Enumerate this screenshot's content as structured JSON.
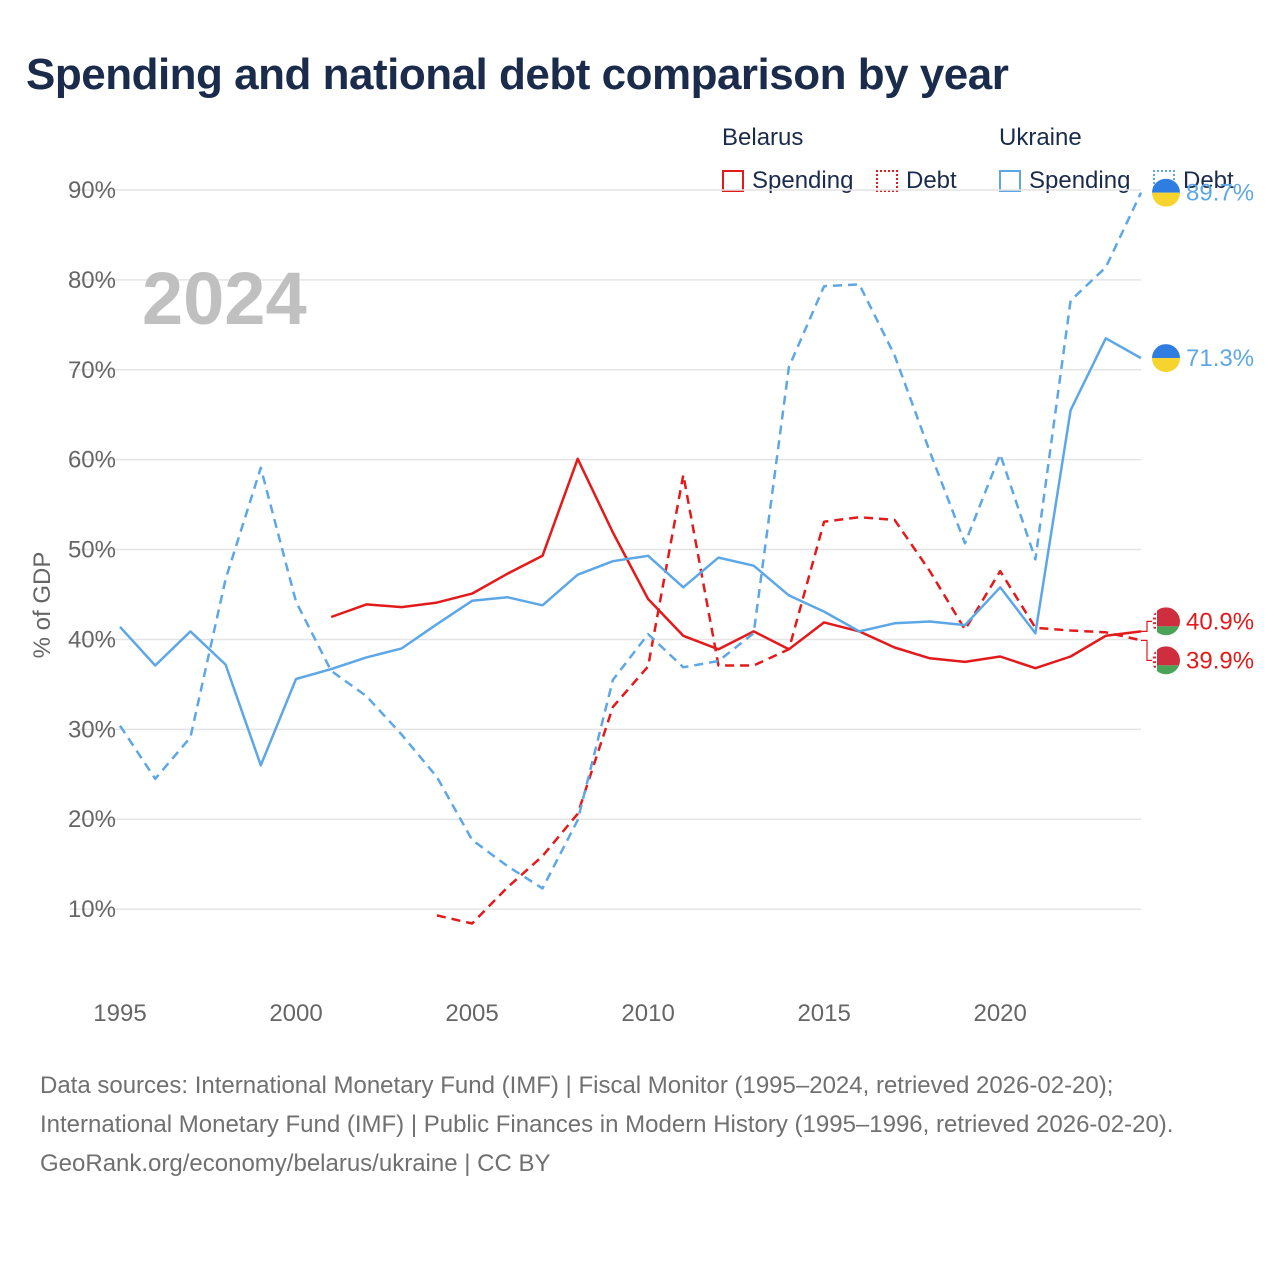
{
  "title": "Spending and national debt comparison by year",
  "legend": {
    "belarus_label": "Belarus",
    "ukraine_label": "Ukraine",
    "spending_label": "Spending",
    "debt_label": "Debt"
  },
  "colors": {
    "belarus": "#e31a1c",
    "ukraine": "#5ea7e6",
    "grid": "#e4e4e4",
    "axis_text": "#666666",
    "year_watermark": "#c0c0c0"
  },
  "year_watermark": "2024",
  "end_labels": {
    "ukraine_debt": "89.7%",
    "ukraine_spending": "71.3%",
    "belarus_spending": "40.9%",
    "belarus_debt": "39.9%"
  },
  "chart_data": {
    "type": "line",
    "ylabel": "% of GDP",
    "xlim": [
      1995,
      2024
    ],
    "ylim": [
      0,
      90
    ],
    "x_ticks": [
      1995,
      2000,
      2005,
      2010,
      2015,
      2020
    ],
    "x_tick_labels": [
      "1995",
      "2000",
      "2005",
      "2010",
      "2015",
      "2020"
    ],
    "y_ticks": [
      10,
      20,
      30,
      40,
      50,
      60,
      70,
      80,
      90
    ],
    "y_tick_labels": [
      "10%",
      "20%",
      "30%",
      "40%",
      "50%",
      "60%",
      "70%",
      "80%",
      "90%"
    ],
    "series": [
      {
        "name": "Belarus Spending",
        "country": "belarus",
        "style": "solid",
        "x": [
          2001,
          2002,
          2003,
          2004,
          2005,
          2006,
          2007,
          2008,
          2009,
          2010,
          2011,
          2012,
          2013,
          2014,
          2015,
          2016,
          2017,
          2018,
          2019,
          2020,
          2021,
          2022,
          2023,
          2024
        ],
        "values": [
          42.5,
          43.9,
          43.6,
          44.1,
          45.1,
          47.3,
          49.3,
          60.1,
          51.9,
          44.5,
          40.4,
          38.9,
          40.9,
          38.9,
          41.9,
          40.9,
          39.1,
          37.9,
          37.5,
          38.1,
          36.8,
          38.1,
          40.4,
          40.9
        ]
      },
      {
        "name": "Belarus Debt",
        "country": "belarus",
        "style": "dashed",
        "x": [
          2004,
          2005,
          2006,
          2007,
          2008,
          2009,
          2010,
          2011,
          2012,
          2013,
          2014,
          2015,
          2016,
          2017,
          2018,
          2019,
          2020,
          2021,
          2022,
          2023,
          2024
        ],
        "values": [
          9.3,
          8.4,
          12.4,
          15.9,
          20.6,
          32.5,
          37.0,
          58.3,
          37.1,
          37.1,
          38.9,
          53.1,
          53.6,
          53.3,
          47.6,
          41.1,
          47.6,
          41.3,
          41.0,
          40.8,
          39.9
        ]
      },
      {
        "name": "Ukraine Spending",
        "country": "ukraine",
        "style": "solid",
        "x": [
          1995,
          1996,
          1997,
          1998,
          1999,
          2000,
          2001,
          2002,
          2003,
          2004,
          2005,
          2006,
          2007,
          2008,
          2009,
          2010,
          2011,
          2012,
          2013,
          2014,
          2015,
          2016,
          2017,
          2018,
          2019,
          2020,
          2021,
          2022,
          2023,
          2024
        ],
        "values": [
          41.4,
          37.1,
          40.9,
          37.2,
          26.0,
          35.6,
          36.7,
          38.0,
          39.0,
          41.7,
          44.3,
          44.7,
          43.8,
          47.2,
          48.7,
          49.3,
          45.8,
          49.1,
          48.2,
          44.9,
          43.1,
          40.9,
          41.8,
          42.0,
          41.6,
          45.8,
          40.7,
          65.5,
          73.5,
          71.3
        ]
      },
      {
        "name": "Ukraine Debt",
        "country": "ukraine",
        "style": "dashed",
        "x": [
          1995,
          1996,
          1997,
          1998,
          1999,
          2000,
          2001,
          2002,
          2003,
          2004,
          2005,
          2006,
          2007,
          2008,
          2009,
          2010,
          2011,
          2012,
          2013,
          2014,
          2015,
          2016,
          2017,
          2018,
          2019,
          2020,
          2021,
          2022,
          2023,
          2024
        ],
        "values": [
          30.4,
          24.5,
          29.1,
          46.7,
          59.1,
          44.2,
          36.5,
          33.7,
          29.4,
          24.7,
          17.7,
          14.8,
          12.3,
          19.9,
          35.5,
          40.6,
          36.9,
          37.6,
          40.7,
          70.3,
          79.3,
          79.5,
          71.6,
          60.9,
          50.7,
          60.6,
          48.9,
          77.7,
          81.4,
          89.7
        ]
      }
    ]
  },
  "footer": {
    "sources": "Data sources: International Monetary Fund (IMF) | Fiscal Monitor (1995–2024, retrieved 2026-02-20); International Monetary Fund (IMF) | Public Finances in Modern History (1995–1996, retrieved 2026-02-20).",
    "credit": "GeoRank.org/economy/belarus/ukraine | CC BY"
  }
}
